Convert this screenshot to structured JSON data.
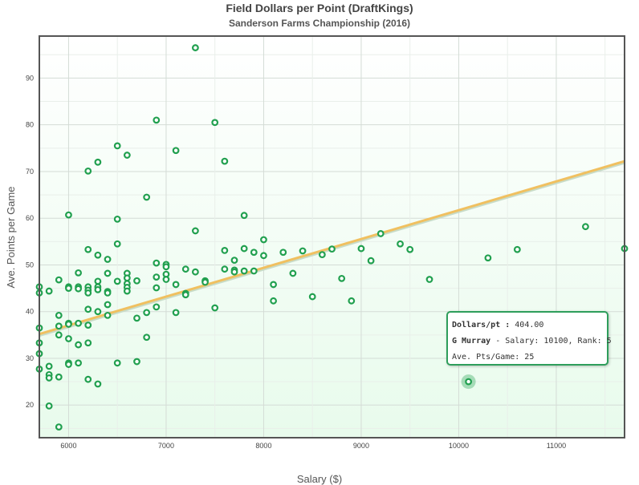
{
  "chart_data": {
    "type": "scatter",
    "title": "Field Dollars per Point (DraftKings)",
    "subtitle": "Sanderson Farms Championship (2016)",
    "xlabel": "Salary ($)",
    "ylabel": "Ave. Points per Game",
    "xlim": [
      5700,
      11700
    ],
    "ylim": [
      13,
      99
    ],
    "x_ticks": [
      6000,
      7000,
      8000,
      9000,
      10000,
      11000
    ],
    "y_ticks": [
      20,
      30,
      40,
      50,
      60,
      70,
      80,
      90
    ],
    "grid": true,
    "trend_line": {
      "x": [
        5700,
        11700
      ],
      "y": [
        35.2,
        72.2
      ]
    },
    "points": [
      {
        "x": 5700,
        "y": 45.3
      },
      {
        "x": 5700,
        "y": 44
      },
      {
        "x": 5700,
        "y": 36.5
      },
      {
        "x": 5700,
        "y": 33.3
      },
      {
        "x": 5700,
        "y": 31
      },
      {
        "x": 5700,
        "y": 27.7
      },
      {
        "x": 5800,
        "y": 44.4
      },
      {
        "x": 5800,
        "y": 28.3
      },
      {
        "x": 5800,
        "y": 26.5
      },
      {
        "x": 5800,
        "y": 25.8
      },
      {
        "x": 5800,
        "y": 19.8
      },
      {
        "x": 5900,
        "y": 46.8
      },
      {
        "x": 5900,
        "y": 39.2
      },
      {
        "x": 5900,
        "y": 36.9
      },
      {
        "x": 5900,
        "y": 35.0
      },
      {
        "x": 5900,
        "y": 26
      },
      {
        "x": 5900,
        "y": 15.3
      },
      {
        "x": 6000,
        "y": 60.7
      },
      {
        "x": 6000,
        "y": 45.3
      },
      {
        "x": 6000,
        "y": 45
      },
      {
        "x": 6000,
        "y": 37.5
      },
      {
        "x": 6000,
        "y": 37.3
      },
      {
        "x": 6000,
        "y": 34.2
      },
      {
        "x": 6000,
        "y": 29
      },
      {
        "x": 6000,
        "y": 28.7
      },
      {
        "x": 6100,
        "y": 48.3
      },
      {
        "x": 6100,
        "y": 45.3
      },
      {
        "x": 6100,
        "y": 44.9
      },
      {
        "x": 6100,
        "y": 37.5
      },
      {
        "x": 6100,
        "y": 32.9
      },
      {
        "x": 6100,
        "y": 29
      },
      {
        "x": 6200,
        "y": 70.1
      },
      {
        "x": 6200,
        "y": 53.3
      },
      {
        "x": 6200,
        "y": 45.3
      },
      {
        "x": 6200,
        "y": 44.6
      },
      {
        "x": 6200,
        "y": 44
      },
      {
        "x": 6200,
        "y": 40.5
      },
      {
        "x": 6200,
        "y": 37.1
      },
      {
        "x": 6200,
        "y": 33.3
      },
      {
        "x": 6200,
        "y": 25.5
      },
      {
        "x": 6300,
        "y": 72
      },
      {
        "x": 6300,
        "y": 52.1
      },
      {
        "x": 6300,
        "y": 46.5
      },
      {
        "x": 6300,
        "y": 45.3
      },
      {
        "x": 6300,
        "y": 44.7
      },
      {
        "x": 6300,
        "y": 40
      },
      {
        "x": 6300,
        "y": 24.5
      },
      {
        "x": 6400,
        "y": 51.2
      },
      {
        "x": 6400,
        "y": 48.2
      },
      {
        "x": 6400,
        "y": 44.3
      },
      {
        "x": 6400,
        "y": 44
      },
      {
        "x": 6400,
        "y": 41.5
      },
      {
        "x": 6400,
        "y": 39.2
      },
      {
        "x": 6500,
        "y": 75.5
      },
      {
        "x": 6500,
        "y": 59.8
      },
      {
        "x": 6500,
        "y": 54.5
      },
      {
        "x": 6500,
        "y": 46.5
      },
      {
        "x": 6500,
        "y": 29
      },
      {
        "x": 6600,
        "y": 73.5
      },
      {
        "x": 6600,
        "y": 48.2
      },
      {
        "x": 6600,
        "y": 47.2
      },
      {
        "x": 6600,
        "y": 46
      },
      {
        "x": 6600,
        "y": 45.2
      },
      {
        "x": 6600,
        "y": 44.4
      },
      {
        "x": 6700,
        "y": 46.6
      },
      {
        "x": 6700,
        "y": 38.6
      },
      {
        "x": 6700,
        "y": 29.3
      },
      {
        "x": 6800,
        "y": 64.5
      },
      {
        "x": 6800,
        "y": 39.8
      },
      {
        "x": 6800,
        "y": 34.5
      },
      {
        "x": 6900,
        "y": 81
      },
      {
        "x": 6900,
        "y": 50.4
      },
      {
        "x": 6900,
        "y": 47.4
      },
      {
        "x": 6900,
        "y": 45.1
      },
      {
        "x": 6900,
        "y": 41
      },
      {
        "x": 7000,
        "y": 50.1
      },
      {
        "x": 7000,
        "y": 49.6
      },
      {
        "x": 7000,
        "y": 48
      },
      {
        "x": 7000,
        "y": 46.9
      },
      {
        "x": 7100,
        "y": 74.5
      },
      {
        "x": 7100,
        "y": 45.8
      },
      {
        "x": 7100,
        "y": 39.8
      },
      {
        "x": 7200,
        "y": 49.1
      },
      {
        "x": 7200,
        "y": 43.9
      },
      {
        "x": 7200,
        "y": 43.6
      },
      {
        "x": 7300,
        "y": 96.5
      },
      {
        "x": 7300,
        "y": 57.3
      },
      {
        "x": 7300,
        "y": 48.5
      },
      {
        "x": 7400,
        "y": 46.6
      },
      {
        "x": 7400,
        "y": 46.3
      },
      {
        "x": 7500,
        "y": 80.5
      },
      {
        "x": 7500,
        "y": 40.8
      },
      {
        "x": 7600,
        "y": 72.2
      },
      {
        "x": 7600,
        "y": 53.1
      },
      {
        "x": 7600,
        "y": 49.1
      },
      {
        "x": 7700,
        "y": 51
      },
      {
        "x": 7700,
        "y": 48.9
      },
      {
        "x": 7700,
        "y": 48.5
      },
      {
        "x": 7800,
        "y": 60.6
      },
      {
        "x": 7800,
        "y": 53.5
      },
      {
        "x": 7800,
        "y": 48.7
      },
      {
        "x": 7900,
        "y": 52.7
      },
      {
        "x": 7900,
        "y": 48.7
      },
      {
        "x": 8000,
        "y": 55.4
      },
      {
        "x": 8000,
        "y": 52
      },
      {
        "x": 8100,
        "y": 45.8
      },
      {
        "x": 8100,
        "y": 42.3
      },
      {
        "x": 8200,
        "y": 52.7
      },
      {
        "x": 8300,
        "y": 48.2
      },
      {
        "x": 8400,
        "y": 53
      },
      {
        "x": 8500,
        "y": 43.2
      },
      {
        "x": 8600,
        "y": 52.2
      },
      {
        "x": 8700,
        "y": 53.4
      },
      {
        "x": 8800,
        "y": 47.1
      },
      {
        "x": 8900,
        "y": 42.3
      },
      {
        "x": 9000,
        "y": 53.5
      },
      {
        "x": 9100,
        "y": 50.9
      },
      {
        "x": 9200,
        "y": 56.7
      },
      {
        "x": 9400,
        "y": 54.5
      },
      {
        "x": 9500,
        "y": 53.3
      },
      {
        "x": 9700,
        "y": 46.9
      },
      {
        "x": 10100,
        "y": 25
      },
      {
        "x": 10300,
        "y": 51.5
      },
      {
        "x": 10600,
        "y": 53.3
      },
      {
        "x": 11300,
        "y": 58.2
      },
      {
        "x": 11700,
        "y": 53.5
      }
    ],
    "highlight": {
      "x": 10100,
      "y": 25
    }
  },
  "tooltip": {
    "line1_label": "Dollars/pt :",
    "line1_value": "404.00",
    "line2_label": "G Murray",
    "line2_value": "- Salary: 10100, Rank: 5",
    "line3": "Ave. Pts/Game: 25"
  },
  "colors": {
    "marker": "#21a04f",
    "trend": "#f0c060",
    "frame": "#555555",
    "tooltip_border": "#2e9e5b"
  }
}
